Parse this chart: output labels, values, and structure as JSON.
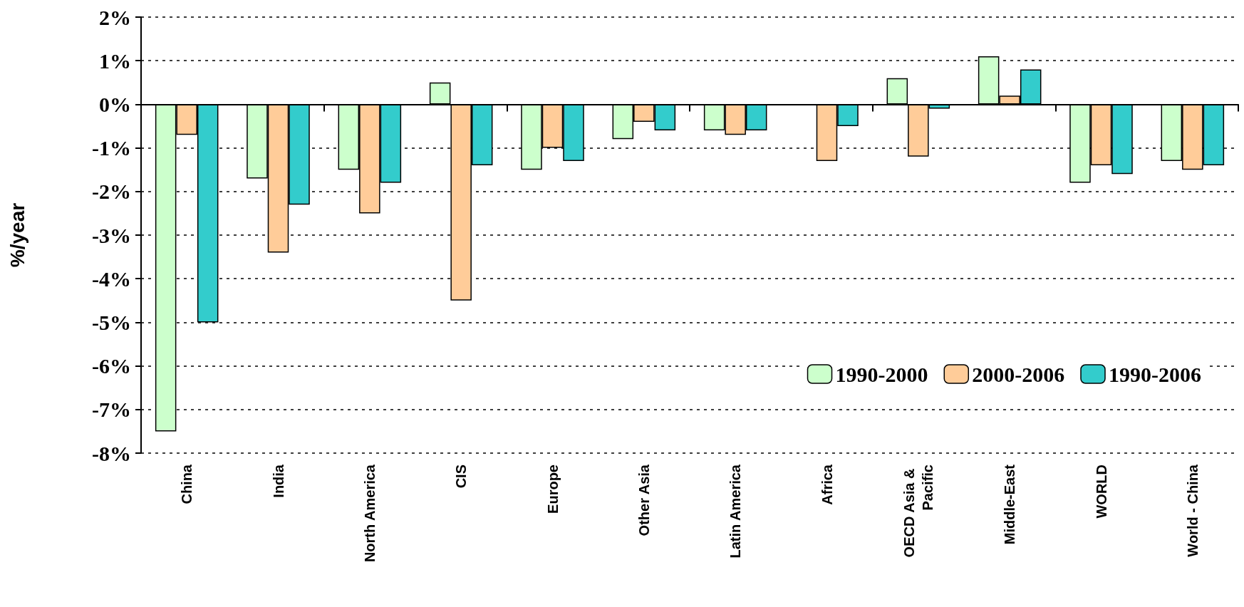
{
  "chart_data": {
    "type": "bar",
    "ylabel": "%/year",
    "categories": [
      "China",
      "India",
      "North America",
      "CIS",
      "Europe",
      "Other Asia",
      "Latin America",
      "Africa",
      "OECD Asia & Pacific",
      "Middle-East",
      "WORLD",
      "World - China"
    ],
    "series": [
      {
        "name": "1990-2000",
        "color": "#ccffcc",
        "values": [
          -7.5,
          -1.7,
          -1.5,
          0.5,
          -1.5,
          -0.8,
          -0.6,
          null,
          0.6,
          1.1,
          -1.8,
          -1.3
        ]
      },
      {
        "name": "2000-2006",
        "color": "#ffcc99",
        "values": [
          -0.7,
          -3.4,
          -2.5,
          -4.5,
          -1.0,
          -0.4,
          -0.7,
          -1.3,
          -1.2,
          0.2,
          -1.4,
          -1.5
        ]
      },
      {
        "name": "1990-2006",
        "color": "#33cccc",
        "values": [
          -5.0,
          -2.3,
          -1.8,
          -1.4,
          -1.3,
          -0.6,
          -0.6,
          -0.5,
          -0.1,
          0.8,
          -1.6,
          -1.4
        ]
      }
    ],
    "ylim": [
      -8,
      2
    ],
    "yticks": [
      {
        "value": -8,
        "label": "-8%"
      },
      {
        "value": -7,
        "label": "-7%"
      },
      {
        "value": -6,
        "label": "-6%"
      },
      {
        "value": -5,
        "label": "-5%"
      },
      {
        "value": -4,
        "label": "-4%"
      },
      {
        "value": -3,
        "label": "-3%"
      },
      {
        "value": -2,
        "label": "-2%"
      },
      {
        "value": -1,
        "label": "-1%"
      },
      {
        "value": 0,
        "label": "0%"
      },
      {
        "value": 1,
        "label": "1%"
      },
      {
        "value": 2,
        "label": "2%"
      }
    ],
    "grid": "y",
    "legend": "bottom right"
  }
}
